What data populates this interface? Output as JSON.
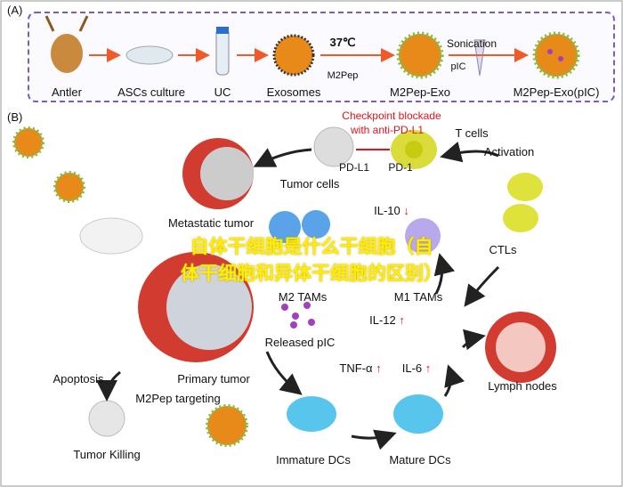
{
  "panel_a": {
    "label": "(A)",
    "steps": [
      "Antler",
      "ASCs culture",
      "UC",
      "Exosomes",
      "M2Pep-Exo",
      "M2Pep-Exo(pIC)"
    ],
    "temperature": "37℃",
    "peptide": "M2Pep",
    "sonication": "Sonication",
    "pic": "pIC"
  },
  "panel_b": {
    "label": "(B)",
    "checkpoint_line1": "Checkpoint blockade",
    "checkpoint_line2": "with anti-PD-L1",
    "t_cells": "T cells",
    "pd_l1": "PD-L1",
    "pd_1": "PD-1",
    "tumor_cells": "Tumor cells",
    "activation": "Activation",
    "il10": "IL-10",
    "metastatic_tumor": "Metastatic tumor",
    "m2_tams": "M2 TAMs",
    "m1_tams": "M1 TAMs",
    "ctls": "CTLs",
    "il12": "IL-12",
    "released_pic": "Released pIC",
    "tnf": "TNF-α",
    "il6": "IL-6",
    "lymph_nodes": "Lymph nodes",
    "apoptosis": "Apoptosis",
    "primary_tumor": "Primary tumor",
    "m2pep_targeting": "M2Pep targeting",
    "tumor_killing": "Tumor Killing",
    "immature_dcs": "Immature DCs",
    "mature_dcs": "Mature DCs",
    "up_arrow": "↑",
    "down_arrow": "↓"
  },
  "overlay_title": {
    "line1": "自体干细胞是什么干细胞（自",
    "line2": "体干细胞和异体干细胞的区别）"
  },
  "colors": {
    "accent_border": "#7a5cc8",
    "red": "#e0141e",
    "overlay": "#ffee00"
  }
}
